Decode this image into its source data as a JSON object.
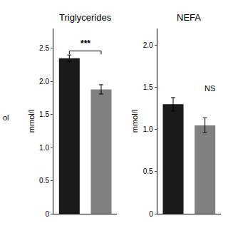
{
  "chart_data": [
    {
      "type": "bar",
      "title": "Triglycerides",
      "categories": [
        null,
        null
      ],
      "values": [
        2.35,
        1.88
      ],
      "errors": [
        0.05,
        0.07
      ],
      "colors": [
        "#1a1a1a",
        "#808080"
      ],
      "ylabel": "mmol/l",
      "ylim": [
        0,
        2.8
      ],
      "yticks": [
        0,
        0.5,
        {
          "value": 1.0,
          "label": "1.0"
        },
        1.5,
        {
          "value": 2.0,
          "label": "2.0"
        },
        2.5
      ],
      "grid": false,
      "tick_labels": "y",
      "annotations": [
        "ol",
        "***"
      ]
    },
    {
      "type": "bar",
      "title": "NEFA",
      "categories": [
        null,
        null
      ],
      "values": [
        1.3,
        1.05
      ],
      "errors": [
        0.08,
        0.09
      ],
      "colors": [
        "#1a1a1a",
        "#808080"
      ],
      "ylabel": "mmol/l",
      "ylim": [
        0,
        2.2
      ],
      "yticks": [
        0,
        0.5,
        {
          "value": 1.0,
          "label": "1.0"
        },
        1.5,
        {
          "value": 2.0,
          "label": "2.0"
        }
      ],
      "grid": false,
      "tick_labels": "y",
      "annotations": [
        "NS"
      ]
    }
  ]
}
